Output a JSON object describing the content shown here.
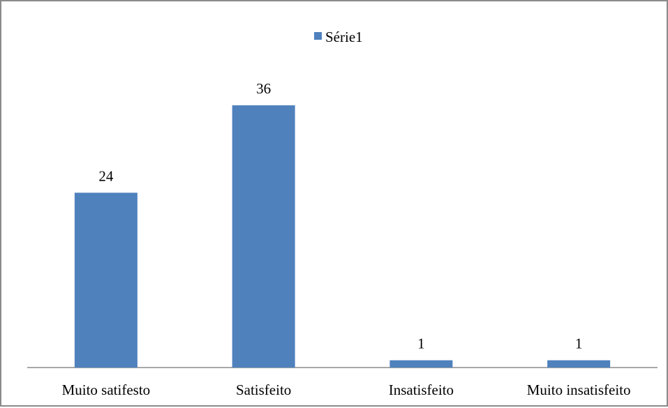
{
  "chart_data": {
    "type": "bar",
    "categories": [
      "Muito satifesto",
      "Satisfeito",
      "Insatisfeito",
      "Muito insatisfeito"
    ],
    "series": [
      {
        "name": "Série1",
        "values": [
          24,
          36,
          1,
          1
        ],
        "color": "#4f81bd"
      }
    ],
    "data_labels": [
      "24",
      "36",
      "1",
      "1"
    ],
    "title": "",
    "xlabel": "",
    "ylabel": "",
    "ylim": [
      0,
      36
    ],
    "grid": false,
    "y_axis_visible": false,
    "legend_position": "top"
  }
}
